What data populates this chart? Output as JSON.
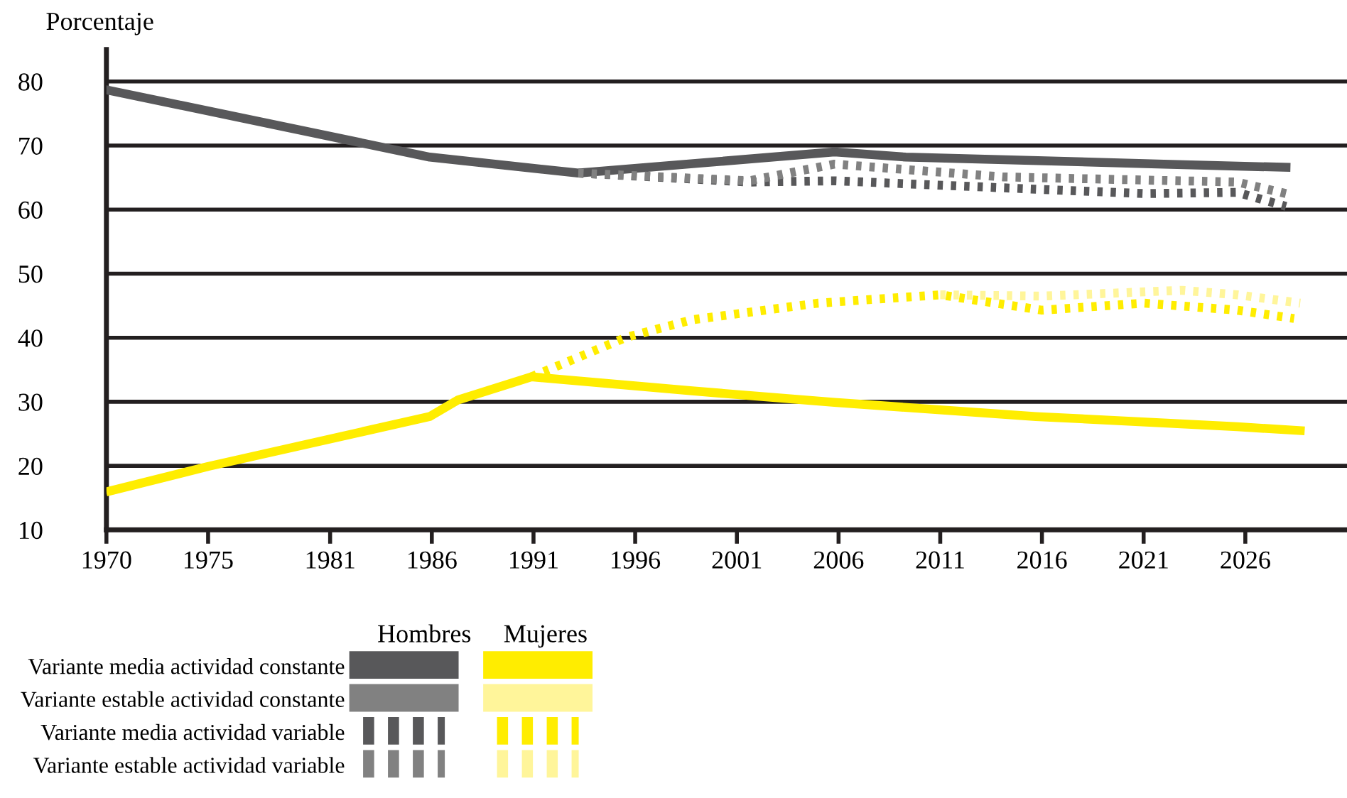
{
  "chart_data": {
    "type": "line",
    "ylabel": "Porcentaje",
    "xlim": [
      1970,
      2031
    ],
    "ylim": [
      10,
      85
    ],
    "xticks": [
      1970,
      1975,
      1981,
      1986,
      1991,
      1996,
      2001,
      2006,
      2011,
      2016,
      2021,
      2026
    ],
    "yticks": [
      10,
      20,
      30,
      40,
      50,
      60,
      70,
      80
    ],
    "grid": "y",
    "legend": "bottom left",
    "annotations": [
      "Hombres",
      "Mujeres"
    ],
    "series": [
      {
        "name": "Variante media actividad constante",
        "color": "#58585a",
        "line_style": "solid",
        "x": [
          1970,
          1985.9,
          1993.2,
          2005.8,
          2009.3,
          2022,
          2028
        ],
        "values": [
          78.7,
          68.2,
          65.7,
          69.0,
          68.2,
          67.1,
          66.6
        ]
      },
      {
        "name": "Variante estable actividad constante",
        "color": "#818181",
        "line_style": "solid"
      },
      {
        "name": "Variante media actividad variable",
        "color": "#58585a",
        "line_style": "dotted",
        "x": [
          1993.2,
          1998.1,
          2001.6,
          2005.8,
          2014.1,
          2021,
          2025.6,
          2028
        ],
        "values": [
          65.7,
          64.9,
          64.3,
          64.5,
          63.4,
          62.5,
          62.7,
          60.5
        ]
      },
      {
        "name": "Variante estable actividad variable",
        "color": "#818181",
        "line_style": "dotted",
        "x": [
          1993.2,
          2001.6,
          2005.8,
          2014.1,
          2025.6,
          2028
        ],
        "values": [
          65.7,
          64.5,
          67.1,
          65.1,
          64.3,
          62.5
        ]
      },
      {
        "color": "#ffed00",
        "line_style": "solid",
        "x": [
          1970.2,
          1975,
          1985.9,
          1987.3,
          1990.9,
          1998.8,
          2005.8,
          2015.7,
          2025.6,
          2028.7
        ],
        "values": [
          16.1,
          19.9,
          27.7,
          30.3,
          33.9,
          31.7,
          29.9,
          27.7,
          26.1,
          25.5
        ]
      },
      {
        "color": "#fff59a",
        "line_style": "solid"
      },
      {
        "color": "#ffed00",
        "line_style": "dotted",
        "x": [
          1990.9,
          1995.6,
          1998.8,
          2005,
          2011,
          2016,
          2021,
          2025.6,
          2028.4
        ],
        "values": [
          33.9,
          40.1,
          42.8,
          45.4,
          46.7,
          44.3,
          45.4,
          44.3,
          43.0
        ]
      },
      {
        "color": "#fff59a",
        "line_style": "dotted",
        "x": [
          2011,
          2016,
          2022.9,
          2025.6,
          2028.7
        ],
        "values": [
          46.7,
          46.5,
          47.4,
          46.7,
          45.4
        ]
      }
    ]
  }
}
